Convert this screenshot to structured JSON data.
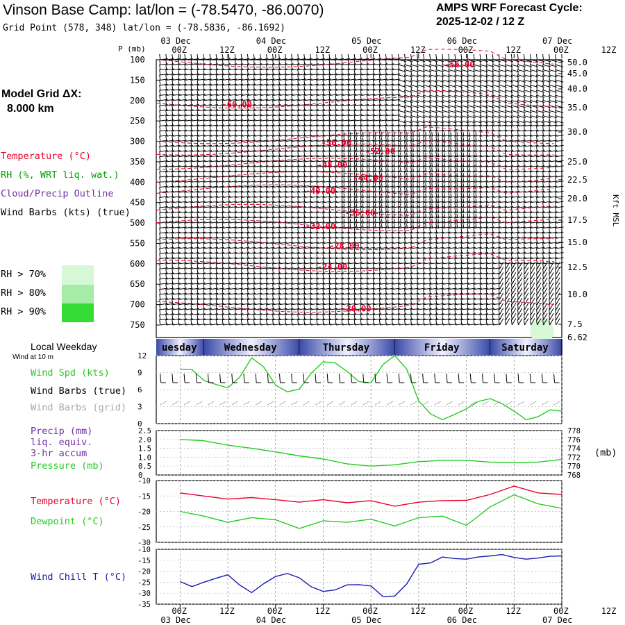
{
  "header": {
    "title": "Vinson Base Camp:  lat/lon = (-78.5470, -86.0070)",
    "grid_point": "Grid Point (578, 348) lat/lon = (-78.5836, -86.1692)",
    "cycle_line1": "AMPS WRF Forecast Cycle:",
    "cycle_line2": "2025-12-02 / 12  Z",
    "model_grid_line1": "Model Grid ΔX:",
    "model_grid_line2": "8.000 km"
  },
  "time_axis": {
    "dates_top": [
      "03 Dec",
      "04 Dec",
      "05 Dec",
      "06 Dec",
      "07 Dec"
    ],
    "dates_bottom": [
      "03 Dec",
      "04 Dec",
      "05 Dec",
      "06 Dec",
      "07 Dec"
    ],
    "hours": [
      "00Z",
      "12Z",
      "00Z",
      "12Z",
      "00Z",
      "12Z",
      "00Z",
      "12Z",
      "00Z",
      "12Z"
    ],
    "weekdays": [
      "uesday",
      "Wednesday",
      "Thursday",
      "Friday",
      "Saturday"
    ],
    "local_weekday_label": "Local Weekday",
    "wind_at_label": "Wind at 10 m"
  },
  "colors": {
    "temperature": "#e8002a",
    "rh": "#00a000",
    "cloud": "#7030a0",
    "wind": "#000000",
    "grid_wind": "#a8a8a8",
    "wind_speed": "#22cc22",
    "pressure": "#22cc22",
    "dewpoint": "#22cc22",
    "wind_chill": "#1a1ab0",
    "rh70": "#d6f8d6",
    "rh80": "#a6eca6",
    "rh90": "#36dc36"
  },
  "legend_top": {
    "temperature": "Temperature (°C)",
    "rh": "RH (%, WRT liq. wat.)",
    "cloud": "Cloud/Precip Outline",
    "wind": "Wind Barbs (kts) (true)",
    "rh70": "RH > 70%",
    "rh80": "RH > 80%",
    "rh90": "RH > 90%"
  },
  "legend_wind": {
    "speed": "Wind Spd (kts)",
    "barbs_true": "Wind Barbs (true)",
    "barbs_grid": "Wind Barbs (grid)"
  },
  "legend_precip": {
    "line1": "Precip (mm)",
    "line2": "liq. equiv.",
    "line3": "3-hr accum",
    "line4": "Pressure (mb)",
    "right_unit": "(mb)"
  },
  "legend_temp": {
    "temperature": "Temperature (°C)",
    "dewpoint": "Dewpoint (°C)"
  },
  "legend_chill": {
    "wind_chill": "Wind Chill T (°C)"
  },
  "chart_data": [
    {
      "type": "heatmap",
      "name": "sounding-cross-section",
      "y_axis_label": "P (mb)",
      "y_ticks_pressure": [
        100,
        150,
        200,
        250,
        300,
        350,
        400,
        450,
        500,
        550,
        600,
        650,
        700,
        750
      ],
      "right_axis_label": "Kft MSL",
      "y_ticks_kft": [
        "50.0",
        "45.0",
        "40.0",
        "35.0",
        "30.0",
        "25.0",
        "22.5",
        "20.0",
        "17.5",
        "15.0",
        "12.5",
        "10.0",
        "7.5",
        "6.62"
      ],
      "x_range_hours": [
        0,
        96
      ],
      "temperature_contour_labels": [
        {
          "label": "-56.00",
          "hour": 70,
          "pressure": 112
        },
        {
          "label": "-60.00",
          "hour": 14,
          "pressure": 210
        },
        {
          "label": "-56.00",
          "hour": 39,
          "pressure": 303
        },
        {
          "label": "-52.00",
          "hour": 50,
          "pressure": 325
        },
        {
          "label": "-48.00",
          "hour": 38,
          "pressure": 358
        },
        {
          "label": "-44.00",
          "hour": 47,
          "pressure": 390
        },
        {
          "label": "-40.00",
          "hour": 35,
          "pressure": 422
        },
        {
          "label": "-36.00",
          "hour": 45,
          "pressure": 475
        },
        {
          "label": "-32.00",
          "hour": 35,
          "pressure": 508
        },
        {
          "label": "-28.00",
          "hour": 41,
          "pressure": 556
        },
        {
          "label": "-24.00",
          "hour": 38,
          "pressure": 608
        },
        {
          "label": "-20.00",
          "hour": 44,
          "pressure": 710
        }
      ],
      "rh_regions": [
        {
          "level": ">70%",
          "hour_range": [
            88,
            94
          ],
          "pressure_range": [
            735,
            760
          ]
        }
      ]
    },
    {
      "type": "line",
      "name": "wind-10m",
      "title": "",
      "ylim": [
        0,
        12
      ],
      "y_ticks": [
        0,
        3,
        6,
        9,
        12
      ],
      "x_hours": [
        0,
        3,
        6,
        9,
        12,
        15,
        18,
        21,
        24,
        27,
        30,
        33,
        36,
        39,
        42,
        45,
        48,
        51,
        54,
        57,
        60,
        63,
        66,
        69,
        72,
        75,
        78,
        81,
        84,
        87,
        90,
        93,
        96
      ],
      "series": [
        {
          "name": "Wind Spd (kts)",
          "values": [
            9.6,
            9.5,
            7.6,
            6.9,
            6.3,
            8.2,
            11.6,
            10.0,
            6.8,
            5.6,
            6.1,
            8.9,
            10.9,
            10.7,
            9.2,
            7.4,
            7.2,
            10.4,
            12.0,
            9.6,
            4.0,
            1.7,
            0.7,
            1.6,
            2.6,
            3.9,
            4.4,
            3.5,
            2.2,
            0.7,
            1.2,
            2.4,
            2.2
          ]
        }
      ]
    },
    {
      "type": "line",
      "name": "precip-pressure",
      "left_ylim": [
        0,
        2.5
      ],
      "left_y_ticks": [
        "0",
        "0.5",
        "1.0",
        "1.5",
        "2.0",
        "2.5"
      ],
      "right_ylim": [
        768,
        778
      ],
      "right_y_ticks": [
        "768",
        "770",
        "772",
        "774",
        "776",
        "778"
      ],
      "x_hours": [
        0,
        6,
        12,
        18,
        24,
        30,
        36,
        42,
        48,
        54,
        60,
        66,
        72,
        78,
        84,
        90,
        96
      ],
      "series": [
        {
          "name": "Pressure (mb)",
          "values": [
            776.0,
            775.7,
            774.7,
            774.0,
            773.2,
            772.3,
            771.6,
            770.5,
            770.0,
            770.3,
            771.0,
            771.3,
            771.3,
            770.9,
            770.8,
            770.9,
            771.5
          ]
        }
      ]
    },
    {
      "type": "line",
      "name": "temperature-dewpoint",
      "ylim": [
        -30,
        -10
      ],
      "y_ticks": [
        "-10",
        "-15",
        "-20",
        "-25",
        "-30"
      ],
      "x_hours": [
        0,
        6,
        12,
        18,
        24,
        30,
        36,
        42,
        48,
        54,
        60,
        66,
        72,
        78,
        84,
        90,
        96
      ],
      "series": [
        {
          "name": "Temperature (°C)",
          "values": [
            -14.0,
            -15.0,
            -16.0,
            -15.5,
            -16.2,
            -17.0,
            -16.2,
            -17.2,
            -16.5,
            -18.3,
            -17.0,
            -16.5,
            -16.4,
            -14.5,
            -11.8,
            -14.0,
            -14.5
          ]
        },
        {
          "name": "Dewpoint (°C)",
          "values": [
            -20.0,
            -21.5,
            -23.5,
            -22.0,
            -22.7,
            -25.5,
            -23.0,
            -23.5,
            -22.5,
            -24.7,
            -22.0,
            -21.5,
            -24.5,
            -18.5,
            -14.6,
            -17.5,
            -19.0
          ]
        }
      ]
    },
    {
      "type": "line",
      "name": "wind-chill",
      "ylim": [
        -35,
        -10
      ],
      "y_ticks": [
        "-10",
        "-15",
        "-20",
        "-25",
        "-30",
        "-35"
      ],
      "x_hours": [
        0,
        3,
        6,
        9,
        12,
        15,
        18,
        21,
        24,
        27,
        30,
        33,
        36,
        39,
        42,
        45,
        48,
        51,
        54,
        57,
        60,
        63,
        66,
        69,
        72,
        75,
        78,
        81,
        84,
        87,
        90,
        93,
        96
      ],
      "series": [
        {
          "name": "Wind Chill T (°C)",
          "values": [
            -24.7,
            -27.0,
            -25.0,
            -23.2,
            -21.6,
            -26.3,
            -29.7,
            -25.7,
            -22.4,
            -21.0,
            -23.0,
            -27.1,
            -29.2,
            -28.5,
            -26.2,
            -26.1,
            -26.7,
            -31.5,
            -31.3,
            -25.8,
            -16.8,
            -16.2,
            -13.5,
            -14.2,
            -14.5,
            -13.5,
            -13.0,
            -12.4,
            -13.7,
            -14.5,
            -14.0,
            -13.2,
            -13.0
          ]
        }
      ]
    }
  ]
}
